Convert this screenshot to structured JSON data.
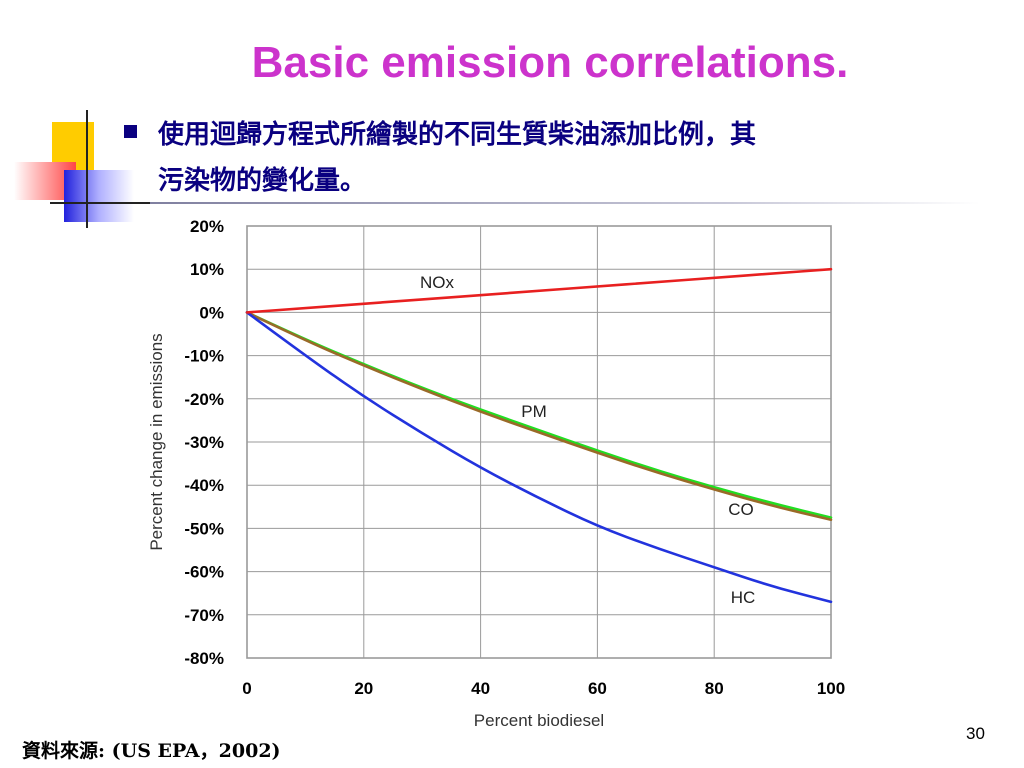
{
  "slide": {
    "title": "Basic emission correlations.",
    "bullet_line1": "使用迴歸方程式所繪製的不同生質柴油添加比例，其",
    "bullet_line2": "污染物的變化量。",
    "source_prefix": "資料來源",
    "source_rest": ": (US EPA，2002)",
    "page_number": "30"
  },
  "colors": {
    "title": "#cc33cc",
    "bullet": "#0a0080",
    "NOx": "#e82020",
    "PM": "#22dd22",
    "CO": "#9a6a28",
    "HC": "#2233dd"
  },
  "chart_data": {
    "type": "line",
    "title": "",
    "xlabel": "Percent biodiesel",
    "ylabel": "Percent change in emissions",
    "xlim": [
      0,
      100
    ],
    "ylim": [
      -80,
      20
    ],
    "x_ticks": [
      "0",
      "20",
      "40",
      "60",
      "80",
      "100"
    ],
    "y_ticks": [
      "20%",
      "10%",
      "0%",
      "-10%",
      "-20%",
      "-30%",
      "-40%",
      "-50%",
      "-60%",
      "-70%",
      "-80%"
    ],
    "grid": true,
    "x": [
      0,
      10,
      20,
      30,
      40,
      50,
      60,
      70,
      80,
      90,
      100
    ],
    "series": [
      {
        "name": "NOx",
        "values": [
          0,
          1.0,
          2.0,
          3.0,
          4.0,
          5.0,
          6.0,
          7.0,
          8.0,
          9.0,
          10.0
        ]
      },
      {
        "name": "PM",
        "values": [
          0,
          -6.3,
          -12.0,
          -17.5,
          -22.5,
          -27.3,
          -32.0,
          -36.5,
          -40.5,
          -44.2,
          -47.5
        ]
      },
      {
        "name": "CO",
        "values": [
          0,
          -6.5,
          -12.3,
          -17.8,
          -23.0,
          -27.8,
          -32.5,
          -37.0,
          -41.0,
          -44.8,
          -48.0
        ]
      },
      {
        "name": "HC",
        "values": [
          0,
          -10.0,
          -19.5,
          -28.0,
          -36.0,
          -43.0,
          -49.5,
          -54.5,
          -59.0,
          -63.5,
          -67.0
        ]
      }
    ]
  }
}
